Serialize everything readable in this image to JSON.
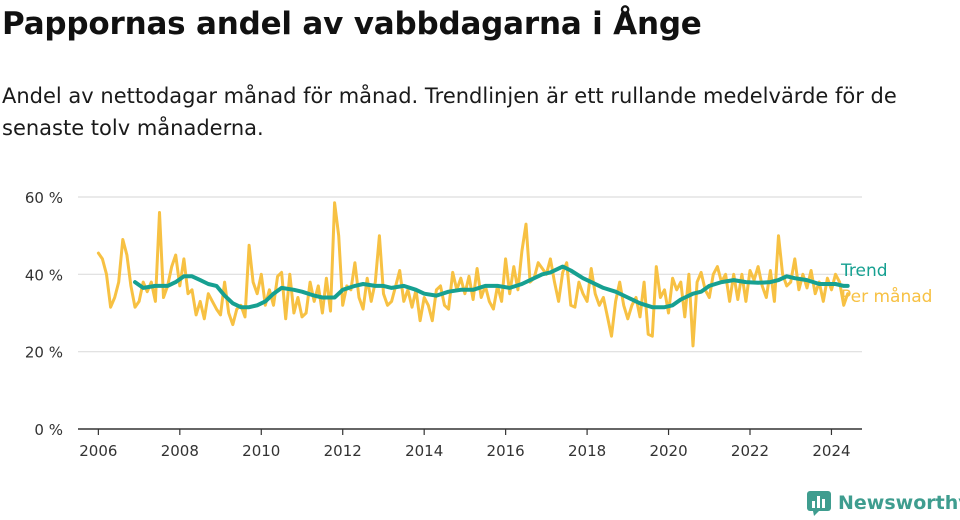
{
  "title": "Pappornas andel av vabbdagarna i Ånge",
  "subtitle": "Andel av nettodagar månad för månad. Trendlinjen är ett rullande medelvärde för de senaste tolv månaderna.",
  "brand": {
    "name": "Newsworthy",
    "icon": "bar-chart-logo-icon",
    "color": "#3f9d8f"
  },
  "chart_data": {
    "type": "line",
    "ylim": [
      0,
      60
    ],
    "yticks": [
      0,
      20,
      40,
      60
    ],
    "ytick_labels": [
      "0 %",
      "20 %",
      "40 %",
      "60 %"
    ],
    "xlim": [
      2005.5,
      2024.75
    ],
    "xticks": [
      2006,
      2008,
      2010,
      2012,
      2014,
      2016,
      2018,
      2020,
      2022,
      2024
    ],
    "xtick_labels": [
      "2006",
      "2008",
      "2010",
      "2012",
      "2014",
      "2016",
      "2018",
      "2020",
      "2022",
      "2024"
    ],
    "grid": true,
    "legend": "right",
    "series": [
      {
        "name": "Trend",
        "color": "#16a091",
        "points": [
          [
            2006.9,
            38.0
          ],
          [
            2007.1,
            36.5
          ],
          [
            2007.4,
            37.0
          ],
          [
            2007.7,
            37.0
          ],
          [
            2007.9,
            38.0
          ],
          [
            2008.1,
            39.5
          ],
          [
            2008.3,
            39.5
          ],
          [
            2008.5,
            38.5
          ],
          [
            2008.7,
            37.5
          ],
          [
            2008.9,
            37.0
          ],
          [
            2009.1,
            34.5
          ],
          [
            2009.3,
            32.5
          ],
          [
            2009.5,
            31.5
          ],
          [
            2009.7,
            31.5
          ],
          [
            2009.9,
            32.0
          ],
          [
            2010.1,
            33.0
          ],
          [
            2010.3,
            35.0
          ],
          [
            2010.5,
            36.5
          ],
          [
            2010.8,
            36.0
          ],
          [
            2011.0,
            35.5
          ],
          [
            2011.3,
            34.5
          ],
          [
            2011.5,
            34.0
          ],
          [
            2011.8,
            34.0
          ],
          [
            2012.0,
            36.0
          ],
          [
            2012.3,
            37.0
          ],
          [
            2012.5,
            37.5
          ],
          [
            2012.8,
            37.0
          ],
          [
            2013.0,
            37.0
          ],
          [
            2013.2,
            36.5
          ],
          [
            2013.5,
            37.0
          ],
          [
            2013.8,
            36.0
          ],
          [
            2014.0,
            35.0
          ],
          [
            2014.3,
            34.5
          ],
          [
            2014.6,
            35.5
          ],
          [
            2014.9,
            36.0
          ],
          [
            2015.2,
            36.0
          ],
          [
            2015.5,
            37.0
          ],
          [
            2015.8,
            37.0
          ],
          [
            2016.1,
            36.5
          ],
          [
            2016.4,
            37.5
          ],
          [
            2016.7,
            39.0
          ],
          [
            2016.9,
            40.0
          ],
          [
            2017.1,
            40.5
          ],
          [
            2017.4,
            42.0
          ],
          [
            2017.6,
            41.0
          ],
          [
            2017.9,
            39.0
          ],
          [
            2018.1,
            38.0
          ],
          [
            2018.4,
            36.5
          ],
          [
            2018.7,
            35.5
          ],
          [
            2019.0,
            34.0
          ],
          [
            2019.3,
            32.5
          ],
          [
            2019.6,
            31.5
          ],
          [
            2019.9,
            31.5
          ],
          [
            2020.1,
            32.0
          ],
          [
            2020.3,
            33.5
          ],
          [
            2020.6,
            35.0
          ],
          [
            2020.8,
            35.5
          ],
          [
            2021.0,
            37.0
          ],
          [
            2021.3,
            38.0
          ],
          [
            2021.6,
            38.5
          ],
          [
            2021.9,
            38.0
          ],
          [
            2022.2,
            37.8
          ],
          [
            2022.5,
            38.0
          ],
          [
            2022.7,
            38.5
          ],
          [
            2022.9,
            39.5
          ],
          [
            2023.1,
            39.0
          ],
          [
            2023.4,
            38.5
          ],
          [
            2023.7,
            37.5
          ],
          [
            2023.9,
            37.5
          ],
          [
            2024.1,
            37.5
          ],
          [
            2024.3,
            37.0
          ],
          [
            2024.4,
            37.0
          ]
        ]
      },
      {
        "name": "Per månad",
        "color": "#f7c143",
        "points": [
          [
            2006.0,
            45.5
          ],
          [
            2006.1,
            44.0
          ],
          [
            2006.2,
            40.0
          ],
          [
            2006.3,
            31.5
          ],
          [
            2006.4,
            34.0
          ],
          [
            2006.5,
            38.0
          ],
          [
            2006.6,
            49.0
          ],
          [
            2006.7,
            45.0
          ],
          [
            2006.8,
            37.0
          ],
          [
            2006.9,
            31.5
          ],
          [
            2007.0,
            33.0
          ],
          [
            2007.1,
            38.0
          ],
          [
            2007.2,
            35.5
          ],
          [
            2007.3,
            38.0
          ],
          [
            2007.4,
            33.0
          ],
          [
            2007.5,
            56.0
          ],
          [
            2007.6,
            34.0
          ],
          [
            2007.7,
            37.0
          ],
          [
            2007.8,
            42.0
          ],
          [
            2007.9,
            45.0
          ],
          [
            2008.0,
            37.0
          ],
          [
            2008.1,
            44.0
          ],
          [
            2008.2,
            35.0
          ],
          [
            2008.3,
            36.0
          ],
          [
            2008.4,
            29.5
          ],
          [
            2008.5,
            33.0
          ],
          [
            2008.6,
            28.5
          ],
          [
            2008.7,
            35.0
          ],
          [
            2008.8,
            33.0
          ],
          [
            2008.9,
            31.0
          ],
          [
            2009.0,
            29.5
          ],
          [
            2009.1,
            38.0
          ],
          [
            2009.2,
            30.0
          ],
          [
            2009.3,
            27.0
          ],
          [
            2009.4,
            31.0
          ],
          [
            2009.5,
            32.0
          ],
          [
            2009.6,
            29.0
          ],
          [
            2009.7,
            47.5
          ],
          [
            2009.8,
            38.0
          ],
          [
            2009.9,
            35.0
          ],
          [
            2010.0,
            40.0
          ],
          [
            2010.1,
            32.0
          ],
          [
            2010.2,
            36.0
          ],
          [
            2010.3,
            32.0
          ],
          [
            2010.4,
            39.5
          ],
          [
            2010.5,
            40.5
          ],
          [
            2010.6,
            28.5
          ],
          [
            2010.7,
            40.0
          ],
          [
            2010.8,
            30.0
          ],
          [
            2010.9,
            34.0
          ],
          [
            2011.0,
            29.0
          ],
          [
            2011.1,
            30.0
          ],
          [
            2011.2,
            38.0
          ],
          [
            2011.3,
            33.0
          ],
          [
            2011.4,
            37.0
          ],
          [
            2011.5,
            30.0
          ],
          [
            2011.6,
            39.0
          ],
          [
            2011.7,
            30.5
          ],
          [
            2011.8,
            58.5
          ],
          [
            2011.9,
            50.0
          ],
          [
            2012.0,
            32.0
          ],
          [
            2012.1,
            37.0
          ],
          [
            2012.2,
            36.0
          ],
          [
            2012.3,
            43.0
          ],
          [
            2012.4,
            34.0
          ],
          [
            2012.5,
            31.0
          ],
          [
            2012.6,
            39.0
          ],
          [
            2012.7,
            33.0
          ],
          [
            2012.8,
            38.0
          ],
          [
            2012.9,
            50.0
          ],
          [
            2013.0,
            35.0
          ],
          [
            2013.1,
            32.0
          ],
          [
            2013.2,
            33.0
          ],
          [
            2013.3,
            37.0
          ],
          [
            2013.4,
            41.0
          ],
          [
            2013.5,
            33.0
          ],
          [
            2013.6,
            36.0
          ],
          [
            2013.7,
            31.5
          ],
          [
            2013.8,
            36.0
          ],
          [
            2013.9,
            28.0
          ],
          [
            2014.0,
            34.0
          ],
          [
            2014.1,
            32.0
          ],
          [
            2014.2,
            28.0
          ],
          [
            2014.3,
            36.0
          ],
          [
            2014.4,
            37.0
          ],
          [
            2014.5,
            32.0
          ],
          [
            2014.6,
            31.0
          ],
          [
            2014.7,
            40.5
          ],
          [
            2014.8,
            36.0
          ],
          [
            2014.9,
            39.0
          ],
          [
            2015.0,
            35.0
          ],
          [
            2015.1,
            39.5
          ],
          [
            2015.2,
            33.5
          ],
          [
            2015.3,
            41.5
          ],
          [
            2015.4,
            34.0
          ],
          [
            2015.5,
            37.0
          ],
          [
            2015.6,
            33.0
          ],
          [
            2015.7,
            31.0
          ],
          [
            2015.8,
            37.0
          ],
          [
            2015.9,
            33.0
          ],
          [
            2016.0,
            44.0
          ],
          [
            2016.1,
            35.0
          ],
          [
            2016.2,
            42.0
          ],
          [
            2016.3,
            36.0
          ],
          [
            2016.4,
            46.0
          ],
          [
            2016.5,
            53.0
          ],
          [
            2016.6,
            38.0
          ],
          [
            2016.7,
            39.0
          ],
          [
            2016.8,
            43.0
          ],
          [
            2016.9,
            41.5
          ],
          [
            2017.0,
            40.0
          ],
          [
            2017.1,
            44.0
          ],
          [
            2017.2,
            38.0
          ],
          [
            2017.3,
            33.0
          ],
          [
            2017.4,
            40.5
          ],
          [
            2017.5,
            43.0
          ],
          [
            2017.6,
            32.0
          ],
          [
            2017.7,
            31.5
          ],
          [
            2017.8,
            38.0
          ],
          [
            2017.9,
            35.0
          ],
          [
            2018.0,
            33.0
          ],
          [
            2018.1,
            41.5
          ],
          [
            2018.2,
            35.0
          ],
          [
            2018.3,
            32.0
          ],
          [
            2018.4,
            34.0
          ],
          [
            2018.5,
            29.0
          ],
          [
            2018.6,
            24.0
          ],
          [
            2018.7,
            33.0
          ],
          [
            2018.8,
            38.0
          ],
          [
            2018.9,
            32.0
          ],
          [
            2019.0,
            28.5
          ],
          [
            2019.1,
            32.0
          ],
          [
            2019.2,
            34.0
          ],
          [
            2019.3,
            29.0
          ],
          [
            2019.4,
            38.0
          ],
          [
            2019.5,
            24.5
          ],
          [
            2019.6,
            24.0
          ],
          [
            2019.7,
            42.0
          ],
          [
            2019.8,
            34.0
          ],
          [
            2019.9,
            36.0
          ],
          [
            2020.0,
            30.0
          ],
          [
            2020.1,
            39.0
          ],
          [
            2020.2,
            36.0
          ],
          [
            2020.3,
            38.0
          ],
          [
            2020.4,
            29.0
          ],
          [
            2020.5,
            40.0
          ],
          [
            2020.6,
            21.5
          ],
          [
            2020.7,
            38.0
          ],
          [
            2020.8,
            40.5
          ],
          [
            2020.9,
            36.0
          ],
          [
            2021.0,
            34.0
          ],
          [
            2021.1,
            40.0
          ],
          [
            2021.2,
            42.0
          ],
          [
            2021.3,
            38.0
          ],
          [
            2021.4,
            40.0
          ],
          [
            2021.5,
            33.0
          ],
          [
            2021.6,
            40.0
          ],
          [
            2021.7,
            33.5
          ],
          [
            2021.8,
            40.0
          ],
          [
            2021.9,
            33.0
          ],
          [
            2022.0,
            41.0
          ],
          [
            2022.1,
            38.5
          ],
          [
            2022.2,
            42.0
          ],
          [
            2022.3,
            37.0
          ],
          [
            2022.4,
            34.0
          ],
          [
            2022.5,
            41.0
          ],
          [
            2022.6,
            33.0
          ],
          [
            2022.7,
            50.0
          ],
          [
            2022.8,
            40.0
          ],
          [
            2022.9,
            37.0
          ],
          [
            2023.0,
            38.0
          ],
          [
            2023.1,
            44.0
          ],
          [
            2023.2,
            36.0
          ],
          [
            2023.3,
            40.0
          ],
          [
            2023.4,
            36.5
          ],
          [
            2023.5,
            41.0
          ],
          [
            2023.6,
            35.0
          ],
          [
            2023.7,
            38.0
          ],
          [
            2023.8,
            33.0
          ],
          [
            2023.9,
            39.0
          ],
          [
            2024.0,
            36.0
          ],
          [
            2024.1,
            40.0
          ],
          [
            2024.2,
            38.0
          ],
          [
            2024.3,
            32.0
          ],
          [
            2024.4,
            35.0
          ]
        ]
      }
    ]
  }
}
